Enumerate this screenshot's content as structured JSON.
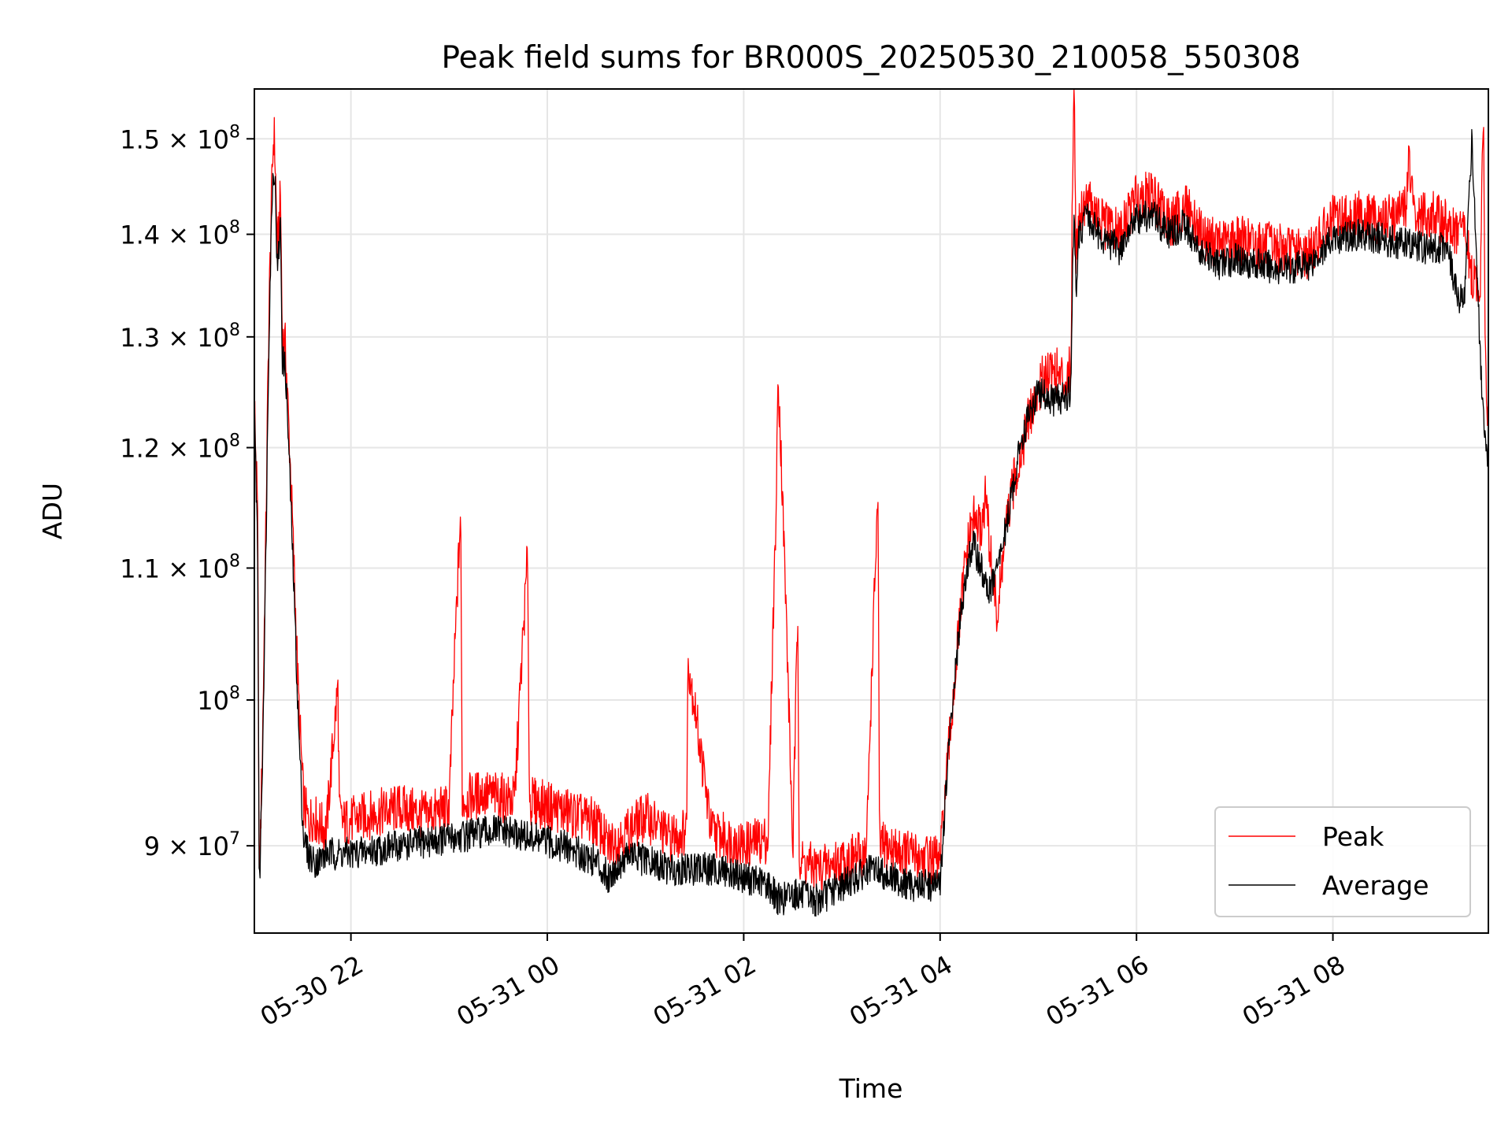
{
  "chart_data": {
    "type": "line",
    "title": "Peak field sums for BR000S_20250530_210058_550308",
    "xlabel": "Time",
    "ylabel": "ADU",
    "y_scale": "log",
    "xlim": [
      "2025-05-30 21:01",
      "2025-05-31 09:35"
    ],
    "ylim": [
      84500000,
      155500000
    ],
    "x_ticks": [
      {
        "t": "2025-05-30 22:00",
        "label": "05-30 22"
      },
      {
        "t": "2025-05-31 00:00",
        "label": "05-31 00"
      },
      {
        "t": "2025-05-31 02:00",
        "label": "05-31 02"
      },
      {
        "t": "2025-05-31 04:00",
        "label": "05-31 04"
      },
      {
        "t": "2025-05-31 06:00",
        "label": "05-31 06"
      },
      {
        "t": "2025-05-31 08:00",
        "label": "05-31 08"
      }
    ],
    "y_ticks": [
      {
        "value": 90000000,
        "mant": "9",
        "sym": "×",
        "base": "10",
        "exp": "7"
      },
      {
        "value": 100000000,
        "mant": "",
        "sym": "",
        "base": "10",
        "exp": "8"
      },
      {
        "value": 110000000,
        "mant": "1.1",
        "sym": "×",
        "base": "10",
        "exp": "8"
      },
      {
        "value": 120000000,
        "mant": "1.2",
        "sym": "×",
        "base": "10",
        "exp": "8"
      },
      {
        "value": 130000000,
        "mant": "1.3",
        "sym": "×",
        "base": "10",
        "exp": "8"
      },
      {
        "value": 140000000,
        "mant": "1.4",
        "sym": "×",
        "base": "10",
        "exp": "8"
      },
      {
        "value": 150000000,
        "mant": "1.5",
        "sym": "×",
        "base": "10",
        "exp": "8"
      }
    ],
    "grid": true,
    "legend_position": "lower-right",
    "series": [
      {
        "name": "Peak",
        "color": "#ff0000",
        "x": [
          "2025-05-30 21:01",
          "2025-05-30 21:03",
          "2025-05-30 21:04",
          "2025-05-30 21:06",
          "2025-05-30 21:08",
          "2025-05-30 21:10",
          "2025-05-30 21:12",
          "2025-05-30 21:13",
          "2025-05-30 21:14",
          "2025-05-30 21:15",
          "2025-05-30 21:17",
          "2025-05-30 21:18",
          "2025-05-30 21:20",
          "2025-05-30 21:22",
          "2025-05-30 21:25",
          "2025-05-30 21:28",
          "2025-05-30 21:31",
          "2025-05-30 21:34",
          "2025-05-30 21:37",
          "2025-05-30 21:40",
          "2025-05-30 21:45",
          "2025-05-30 21:52",
          "2025-05-30 21:53",
          "2025-05-30 21:55",
          "2025-05-30 22:10",
          "2025-05-30 22:30",
          "2025-05-30 22:45",
          "2025-05-30 23:00",
          "2025-05-30 23:07",
          "2025-05-30 23:08",
          "2025-05-30 23:20",
          "2025-05-30 23:40",
          "2025-05-30 23:48",
          "2025-05-30 23:49",
          "2025-05-31 00:05",
          "2025-05-31 00:30",
          "2025-05-31 00:37",
          "2025-05-31 00:50",
          "2025-05-31 01:00",
          "2025-05-31 01:15",
          "2025-05-31 01:25",
          "2025-05-31 01:26",
          "2025-05-31 01:40",
          "2025-05-31 02:00",
          "2025-05-31 02:15",
          "2025-05-31 02:20",
          "2025-05-31 02:21",
          "2025-05-31 02:30",
          "2025-05-31 02:33",
          "2025-05-31 02:34",
          "2025-05-31 02:45",
          "2025-05-31 03:00",
          "2025-05-31 03:15",
          "2025-05-31 03:22",
          "2025-05-31 03:23",
          "2025-05-31 03:40",
          "2025-05-31 04:00",
          "2025-05-31 04:05",
          "2025-05-31 04:10",
          "2025-05-31 04:15",
          "2025-05-31 04:20",
          "2025-05-31 04:25",
          "2025-05-31 04:28",
          "2025-05-31 04:30",
          "2025-05-31 04:35",
          "2025-05-31 04:40",
          "2025-05-31 04:45",
          "2025-05-31 04:50",
          "2025-05-31 04:55",
          "2025-05-31 05:00",
          "2025-05-31 05:05",
          "2025-05-31 05:10",
          "2025-05-31 05:15",
          "2025-05-31 05:20",
          "2025-05-31 05:21",
          "2025-05-31 05:22",
          "2025-05-31 05:23",
          "2025-05-31 05:25",
          "2025-05-31 05:30",
          "2025-05-31 05:35",
          "2025-05-31 05:40",
          "2025-05-31 05:50",
          "2025-05-31 06:00",
          "2025-05-31 06:10",
          "2025-05-31 06:20",
          "2025-05-31 06:30",
          "2025-05-31 06:40",
          "2025-05-31 06:50",
          "2025-05-31 07:00",
          "2025-05-31 07:15",
          "2025-05-31 07:30",
          "2025-05-31 07:45",
          "2025-05-31 08:00",
          "2025-05-31 08:15",
          "2025-05-31 08:30",
          "2025-05-31 08:40",
          "2025-05-31 08:45",
          "2025-05-31 08:46",
          "2025-05-31 08:50",
          "2025-05-31 09:00",
          "2025-05-31 09:10",
          "2025-05-31 09:15",
          "2025-05-31 09:20",
          "2025-05-31 09:25",
          "2025-05-31 09:30",
          "2025-05-31 09:32",
          "2025-05-31 09:33",
          "2025-05-31 09:35"
        ],
        "y": [
          124000000,
          114000000,
          87000000,
          97000000,
          113000000,
          133000000,
          147000000,
          151000000,
          146000000,
          138000000,
          144000000,
          130000000,
          129000000,
          122000000,
          111000000,
          100000000,
          93000000,
          91500000,
          92000000,
          91500000,
          91000000,
          101000000,
          92000000,
          91500000,
          92000000,
          92500000,
          92000000,
          92500000,
          114500000,
          93000000,
          93500000,
          93000000,
          111000000,
          93000000,
          92500000,
          91500000,
          90000000,
          91000000,
          92000000,
          90500000,
          91000000,
          103000000,
          91000000,
          90000000,
          90500000,
          116000000,
          127000000,
          89500000,
          106500000,
          89000000,
          88500000,
          89000000,
          89500000,
          116000000,
          90000000,
          89500000,
          89000000,
          96000000,
          103000000,
          110000000,
          114000000,
          113000000,
          116000000,
          112000000,
          106000000,
          113000000,
          117000000,
          120000000,
          123000000,
          125000000,
          127000000,
          127000000,
          126000000,
          127000000,
          148000000,
          155500000,
          138000000,
          142000000,
          144000000,
          142000000,
          141000000,
          140000000,
          144000000,
          144000000,
          141000000,
          143000000,
          140000000,
          139000000,
          139500000,
          139000000,
          138500000,
          138000000,
          141500000,
          142000000,
          141500000,
          142000000,
          143000000,
          148000000,
          141500000,
          142000000,
          141000000,
          140000000,
          141000000,
          135500000,
          135000000,
          153000000,
          130000000,
          121000000
        ]
      },
      {
        "name": "Average",
        "color": "#000000",
        "x": [
          "2025-05-30 21:01",
          "2025-05-30 21:03",
          "2025-05-30 21:04",
          "2025-05-30 21:06",
          "2025-05-30 21:08",
          "2025-05-30 21:10",
          "2025-05-30 21:12",
          "2025-05-30 21:13",
          "2025-05-30 21:14",
          "2025-05-30 21:15",
          "2025-05-30 21:17",
          "2025-05-30 21:18",
          "2025-05-30 21:20",
          "2025-05-30 21:22",
          "2025-05-30 21:25",
          "2025-05-30 21:28",
          "2025-05-30 21:31",
          "2025-05-30 21:34",
          "2025-05-30 21:37",
          "2025-05-30 21:40",
          "2025-05-30 21:45",
          "2025-05-30 22:00",
          "2025-05-30 22:30",
          "2025-05-30 23:00",
          "2025-05-30 23:30",
          "2025-05-30 23:50",
          "2025-05-31 00:10",
          "2025-05-31 00:30",
          "2025-05-31 00:37",
          "2025-05-31 00:50",
          "2025-05-31 01:00",
          "2025-05-31 01:15",
          "2025-05-31 01:30",
          "2025-05-31 01:45",
          "2025-05-31 02:00",
          "2025-05-31 02:15",
          "2025-05-31 02:22",
          "2025-05-31 02:30",
          "2025-05-31 02:45",
          "2025-05-31 03:00",
          "2025-05-31 03:20",
          "2025-05-31 03:40",
          "2025-05-31 04:00",
          "2025-05-31 04:05",
          "2025-05-31 04:10",
          "2025-05-31 04:15",
          "2025-05-31 04:20",
          "2025-05-31 04:25",
          "2025-05-31 04:30",
          "2025-05-31 04:35",
          "2025-05-31 04:40",
          "2025-05-31 04:45",
          "2025-05-31 04:50",
          "2025-05-31 04:55",
          "2025-05-31 05:00",
          "2025-05-31 05:05",
          "2025-05-31 05:10",
          "2025-05-31 05:15",
          "2025-05-31 05:20",
          "2025-05-31 05:21",
          "2025-05-31 05:22",
          "2025-05-31 05:23",
          "2025-05-31 05:25",
          "2025-05-31 05:30",
          "2025-05-31 05:35",
          "2025-05-31 05:40",
          "2025-05-31 05:50",
          "2025-05-31 06:00",
          "2025-05-31 06:10",
          "2025-05-31 06:20",
          "2025-05-31 06:30",
          "2025-05-31 06:40",
          "2025-05-31 06:50",
          "2025-05-31 07:00",
          "2025-05-31 07:15",
          "2025-05-31 07:30",
          "2025-05-31 07:45",
          "2025-05-31 08:00",
          "2025-05-31 08:15",
          "2025-05-31 08:30",
          "2025-05-31 08:45",
          "2025-05-31 09:00",
          "2025-05-31 09:10",
          "2025-05-31 09:15",
          "2025-05-31 09:20",
          "2025-05-31 09:25",
          "2025-05-31 09:30",
          "2025-05-31 09:32",
          "2025-05-31 09:33",
          "2025-05-31 09:35"
        ],
        "y": [
          123000000,
          112000000,
          86500000,
          96000000,
          111000000,
          131000000,
          145000000,
          147000000,
          144000000,
          136000000,
          141000000,
          128000000,
          127000000,
          120000000,
          109000000,
          98000000,
          90500000,
          89500000,
          89000000,
          89000000,
          89500000,
          89500000,
          90000000,
          90500000,
          91000000,
          90500000,
          90000000,
          89000000,
          88000000,
          89500000,
          89000000,
          88500000,
          88500000,
          88500000,
          88000000,
          87500000,
          86500000,
          87000000,
          86500000,
          87500000,
          88500000,
          87500000,
          87500000,
          96000000,
          103000000,
          109000000,
          112000000,
          110000000,
          108000000,
          110000000,
          113000000,
          117000000,
          121000000,
          123000000,
          125000000,
          124500000,
          124000000,
          124500000,
          125000000,
          136500000,
          142000000,
          134000000,
          140000000,
          142000000,
          140500000,
          139500000,
          138500000,
          141500000,
          142000000,
          140000000,
          141000000,
          138000000,
          137000000,
          137500000,
          137000000,
          136500000,
          137000000,
          139500000,
          140000000,
          139500000,
          139000000,
          138500000,
          139000000,
          134500000,
          133000000,
          150000000,
          128000000,
          122000000,
          120000000,
          118000000
        ]
      }
    ]
  }
}
